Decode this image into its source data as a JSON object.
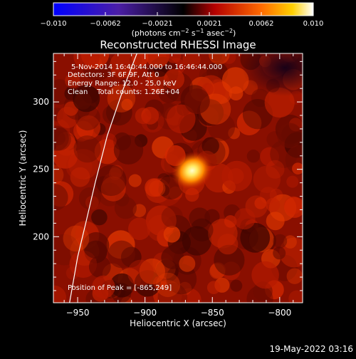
{
  "colorbar": {
    "ticks": [
      "−0.010",
      "−0.0062",
      "−0.0021",
      "0.0021",
      "0.0062",
      "0.010"
    ],
    "unit_label": "(photons cm",
    "unit_exp1": "−2",
    "unit_mid": " s",
    "unit_exp2": "−1",
    "unit_end": " asec",
    "unit_exp3": "−2",
    "unit_close": ")",
    "colors": [
      "#0000ff",
      "#4b1ea6",
      "#000000",
      "#b40000",
      "#ff6a00",
      "#ffd000",
      "#ffffff"
    ]
  },
  "chart_data": {
    "type": "heatmap",
    "title": "Reconstructed RHESSI Image",
    "xlabel": "Heliocentric X (arcsec)",
    "ylabel": "Heliocentric Y (arcsec)",
    "xlim": [
      -968,
      -783
    ],
    "ylim": [
      151,
      336
    ],
    "x_ticks": [
      -950,
      -900,
      -850,
      -800
    ],
    "y_ticks": [
      200,
      250,
      300
    ],
    "x_tick_labels": [
      "−950",
      "−900",
      "−850",
      "−800"
    ],
    "y_tick_labels": [
      "200",
      "250",
      "300"
    ],
    "peak": {
      "x": -865,
      "y": 249
    },
    "limb": [
      [
        -956,
        151
      ],
      [
        -950,
        185
      ],
      [
        -944,
        210
      ],
      [
        -937,
        240
      ],
      [
        -928,
        275
      ],
      [
        -916,
        310
      ],
      [
        -906,
        336
      ]
    ]
  },
  "annotations": {
    "line1": "5-Nov-2014 16:40:44.000 to 16:46:44.000",
    "line2": "Detectors: 3F 6F 9F, Att 0",
    "line3": "Energy Range: 12.0 - 25.0 keV",
    "line4": "Clean    Total counts: 1.26E+04",
    "peak_text": "Position of Peak = [-865,249]"
  },
  "footer": {
    "timestamp": "19-May-2022 03:16"
  }
}
